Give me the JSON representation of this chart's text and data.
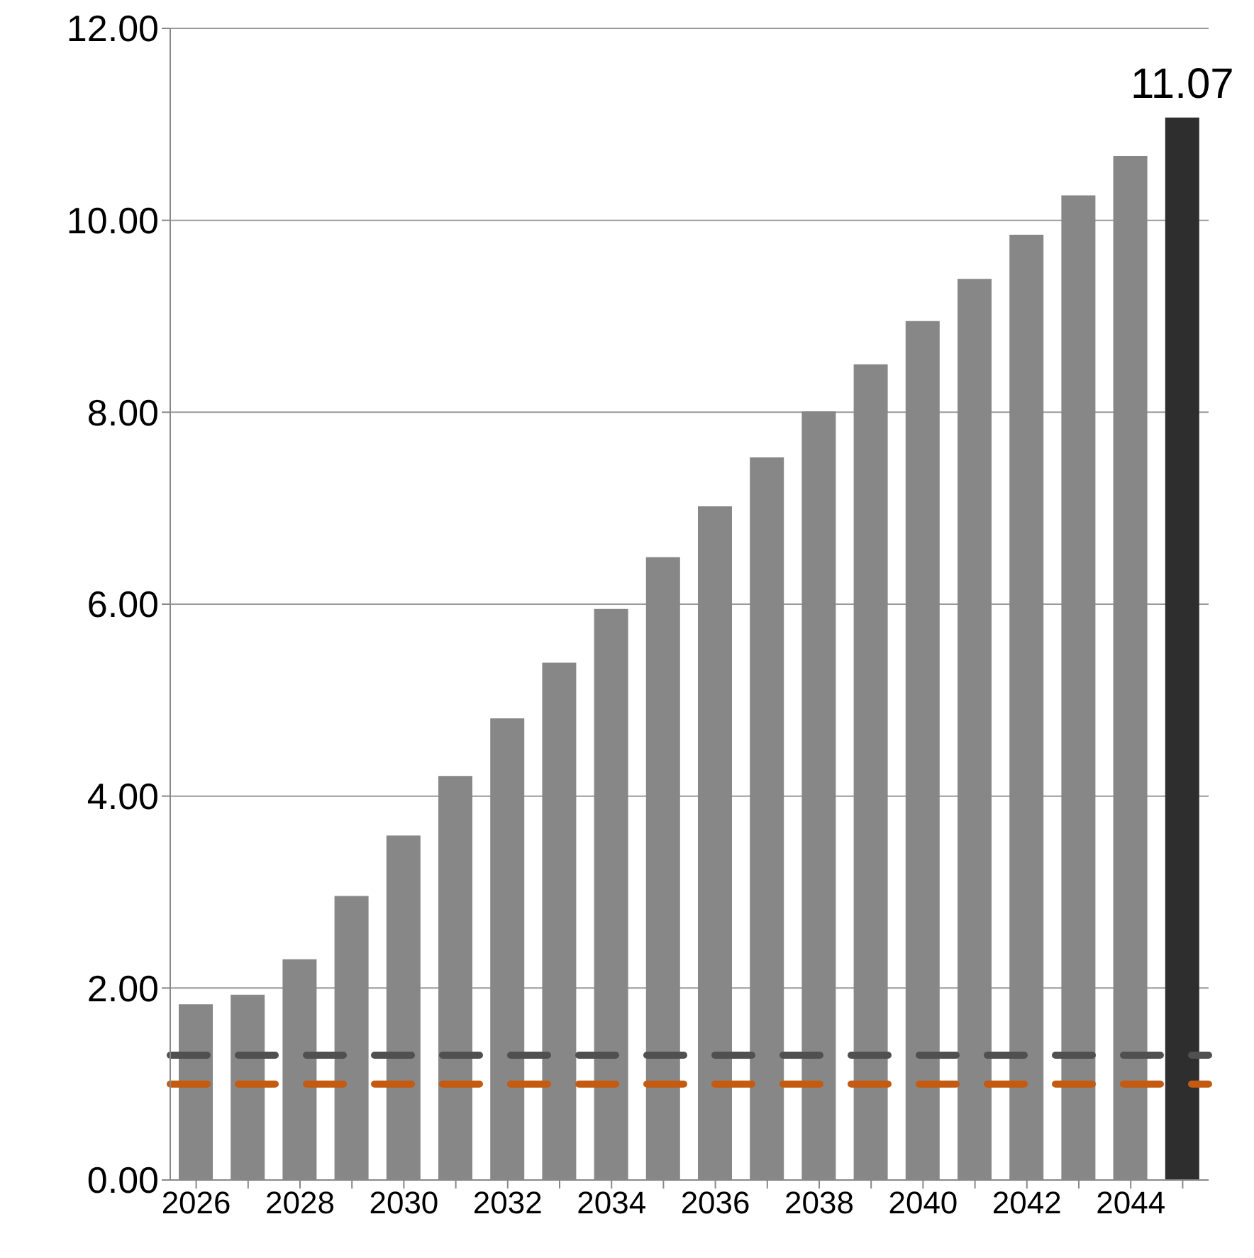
{
  "chart_data": {
    "type": "bar",
    "categories": [
      "2026",
      null,
      "2028",
      null,
      "2030",
      null,
      "2032",
      null,
      "2034",
      null,
      "2036",
      null,
      "2038",
      null,
      "2040",
      null,
      "2042",
      null,
      "2044",
      null
    ],
    "values": [
      1.83,
      1.93,
      2.3,
      2.96,
      3.59,
      4.21,
      4.81,
      5.39,
      5.95,
      6.49,
      7.02,
      7.53,
      8.01,
      8.5,
      8.95,
      9.39,
      9.85,
      10.26,
      10.67,
      11.07
    ],
    "colors": [
      "#878787",
      "#878787",
      "#878787",
      "#878787",
      "#878787",
      "#878787",
      "#878787",
      "#878787",
      "#878787",
      "#878787",
      "#878787",
      "#878787",
      "#878787",
      "#878787",
      "#878787",
      "#878787",
      "#878787",
      "#878787",
      "#878787",
      "#2e2e2e"
    ],
    "value_labels": [
      null,
      null,
      null,
      null,
      null,
      null,
      null,
      null,
      null,
      null,
      null,
      null,
      null,
      null,
      null,
      null,
      null,
      null,
      null,
      "11.07"
    ],
    "ylim": [
      0,
      12
    ],
    "yticks": [
      {
        "value": 0,
        "label": "0.00"
      },
      {
        "value": 2,
        "label": "2.00"
      },
      {
        "value": 4,
        "label": "4.00"
      },
      {
        "value": 6,
        "label": "6.00"
      },
      {
        "value": 8,
        "label": "8.00"
      },
      {
        "value": 10,
        "label": "10.00"
      },
      {
        "value": 12,
        "label": "12.00"
      }
    ],
    "grid": "y",
    "ref_lines": [
      {
        "axis": "y",
        "value": 1.3,
        "color": "#505050",
        "line_style": "dashed"
      },
      {
        "axis": "y",
        "value": 1.0,
        "color": "#c55a11",
        "line_style": "dashed"
      }
    ]
  }
}
